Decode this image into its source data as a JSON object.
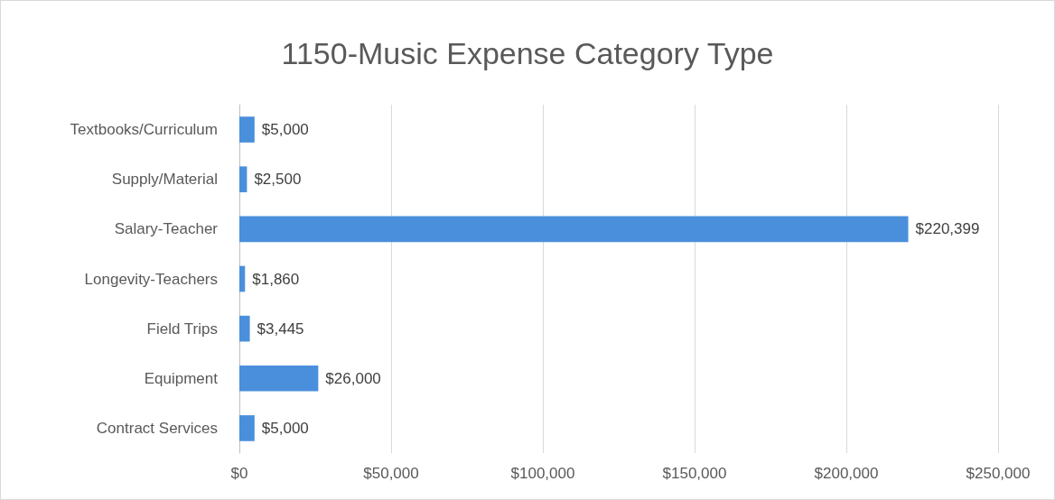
{
  "chart_data": {
    "type": "bar",
    "title": "1150-Music Expense Category Type",
    "orientation": "horizontal",
    "categories": [
      "Textbooks/Curriculum",
      "Supply/Material",
      "Salary-Teacher",
      "Longevity-Teachers",
      "Field Trips",
      "Equipment",
      "Contract Services"
    ],
    "values": [
      5000,
      2500,
      220399,
      1860,
      3445,
      26000,
      5000
    ],
    "value_labels": [
      "$5,000",
      "$2,500",
      "$220,399",
      "$1,860",
      "$3,445",
      "$26,000",
      "$5,000"
    ],
    "color": "#4a8fdb",
    "xlim": [
      0,
      250000
    ],
    "xticks": [
      {
        "value": 0,
        "label": "$0"
      },
      {
        "value": 50000,
        "label": "$50,000"
      },
      {
        "value": 100000,
        "label": "$100,000"
      },
      {
        "value": 150000,
        "label": "$150,000"
      },
      {
        "value": 200000,
        "label": "$200,000"
      },
      {
        "value": 250000,
        "label": "$250,000"
      }
    ],
    "grid": "x"
  }
}
